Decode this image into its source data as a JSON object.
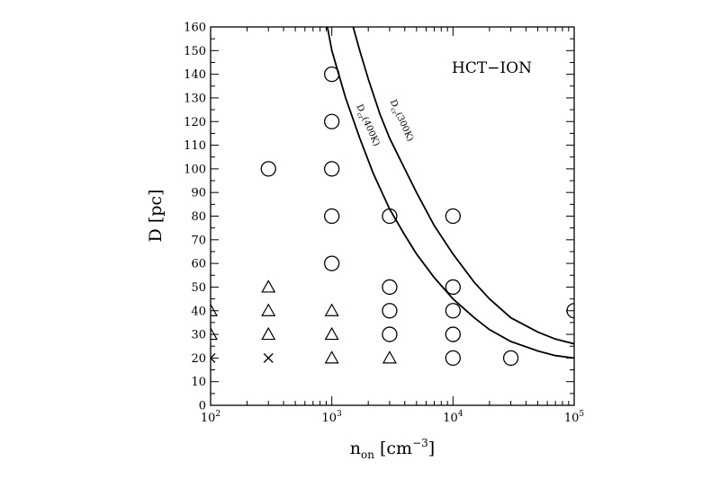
{
  "chart_data": {
    "type": "scatter",
    "title": "",
    "annotation": "HCT−ION",
    "xlabel": {
      "base": "n",
      "sub": "on",
      "unit_open": " [cm",
      "unit_sup": "−3",
      "unit_close": "]"
    },
    "ylabel": "D [pc]",
    "x_scale": "log",
    "xlim": [
      100,
      100000
    ],
    "ylim": [
      0,
      160
    ],
    "x_ticks": [
      {
        "value": 100,
        "base": "10",
        "exp": "2"
      },
      {
        "value": 1000,
        "base": "10",
        "exp": "3"
      },
      {
        "value": 10000,
        "base": "10",
        "exp": "4"
      },
      {
        "value": 100000,
        "base": "10",
        "exp": "5"
      }
    ],
    "y_ticks": [
      0,
      10,
      20,
      30,
      40,
      50,
      60,
      70,
      80,
      90,
      100,
      110,
      120,
      130,
      140,
      150,
      160
    ],
    "grid": false,
    "series": [
      {
        "marker": "circle",
        "points": [
          [
            300,
            100
          ],
          [
            1000,
            140
          ],
          [
            1000,
            120
          ],
          [
            1000,
            100
          ],
          [
            1000,
            80
          ],
          [
            1000,
            60
          ],
          [
            3000,
            80
          ],
          [
            3000,
            50
          ],
          [
            3000,
            40
          ],
          [
            3000,
            30
          ],
          [
            10000,
            80
          ],
          [
            10000,
            50
          ],
          [
            10000,
            40
          ],
          [
            10000,
            30
          ],
          [
            10000,
            20
          ],
          [
            30000,
            20
          ],
          [
            100000,
            40
          ]
        ]
      },
      {
        "marker": "triangle",
        "points": [
          [
            300,
            50
          ],
          [
            300,
            40
          ],
          [
            300,
            30
          ],
          [
            1000,
            40
          ],
          [
            1000,
            30
          ],
          [
            1000,
            20
          ],
          [
            3000,
            20
          ],
          [
            100,
            40
          ],
          [
            100,
            30
          ]
        ]
      },
      {
        "marker": "cross",
        "points": [
          [
            300,
            20
          ],
          [
            100,
            20
          ]
        ]
      }
    ],
    "curves": [
      {
        "label_main": "D",
        "label_sub": "cr",
        "label_rest": "(400K)",
        "points": [
          [
            920,
            160
          ],
          [
            1000,
            150
          ],
          [
            1300,
            130
          ],
          [
            1700,
            113
          ],
          [
            2200,
            98
          ],
          [
            3000,
            83
          ],
          [
            4000,
            72
          ],
          [
            5000,
            64
          ],
          [
            7000,
            54
          ],
          [
            10000,
            45
          ],
          [
            15000,
            37
          ],
          [
            20000,
            32
          ],
          [
            30000,
            27
          ],
          [
            50000,
            23
          ],
          [
            70000,
            21
          ],
          [
            100000,
            20
          ]
        ]
      },
      {
        "label_main": "D",
        "label_sub": "cr",
        "label_rest": "(300K)",
        "points": [
          [
            1500,
            160
          ],
          [
            1700,
            150
          ],
          [
            2000,
            138
          ],
          [
            2500,
            123
          ],
          [
            3000,
            113
          ],
          [
            4000,
            100
          ],
          [
            5000,
            90
          ],
          [
            7000,
            76
          ],
          [
            10000,
            64
          ],
          [
            15000,
            52
          ],
          [
            20000,
            45
          ],
          [
            30000,
            37
          ],
          [
            50000,
            31
          ],
          [
            70000,
            28
          ],
          [
            100000,
            26
          ]
        ]
      }
    ]
  }
}
